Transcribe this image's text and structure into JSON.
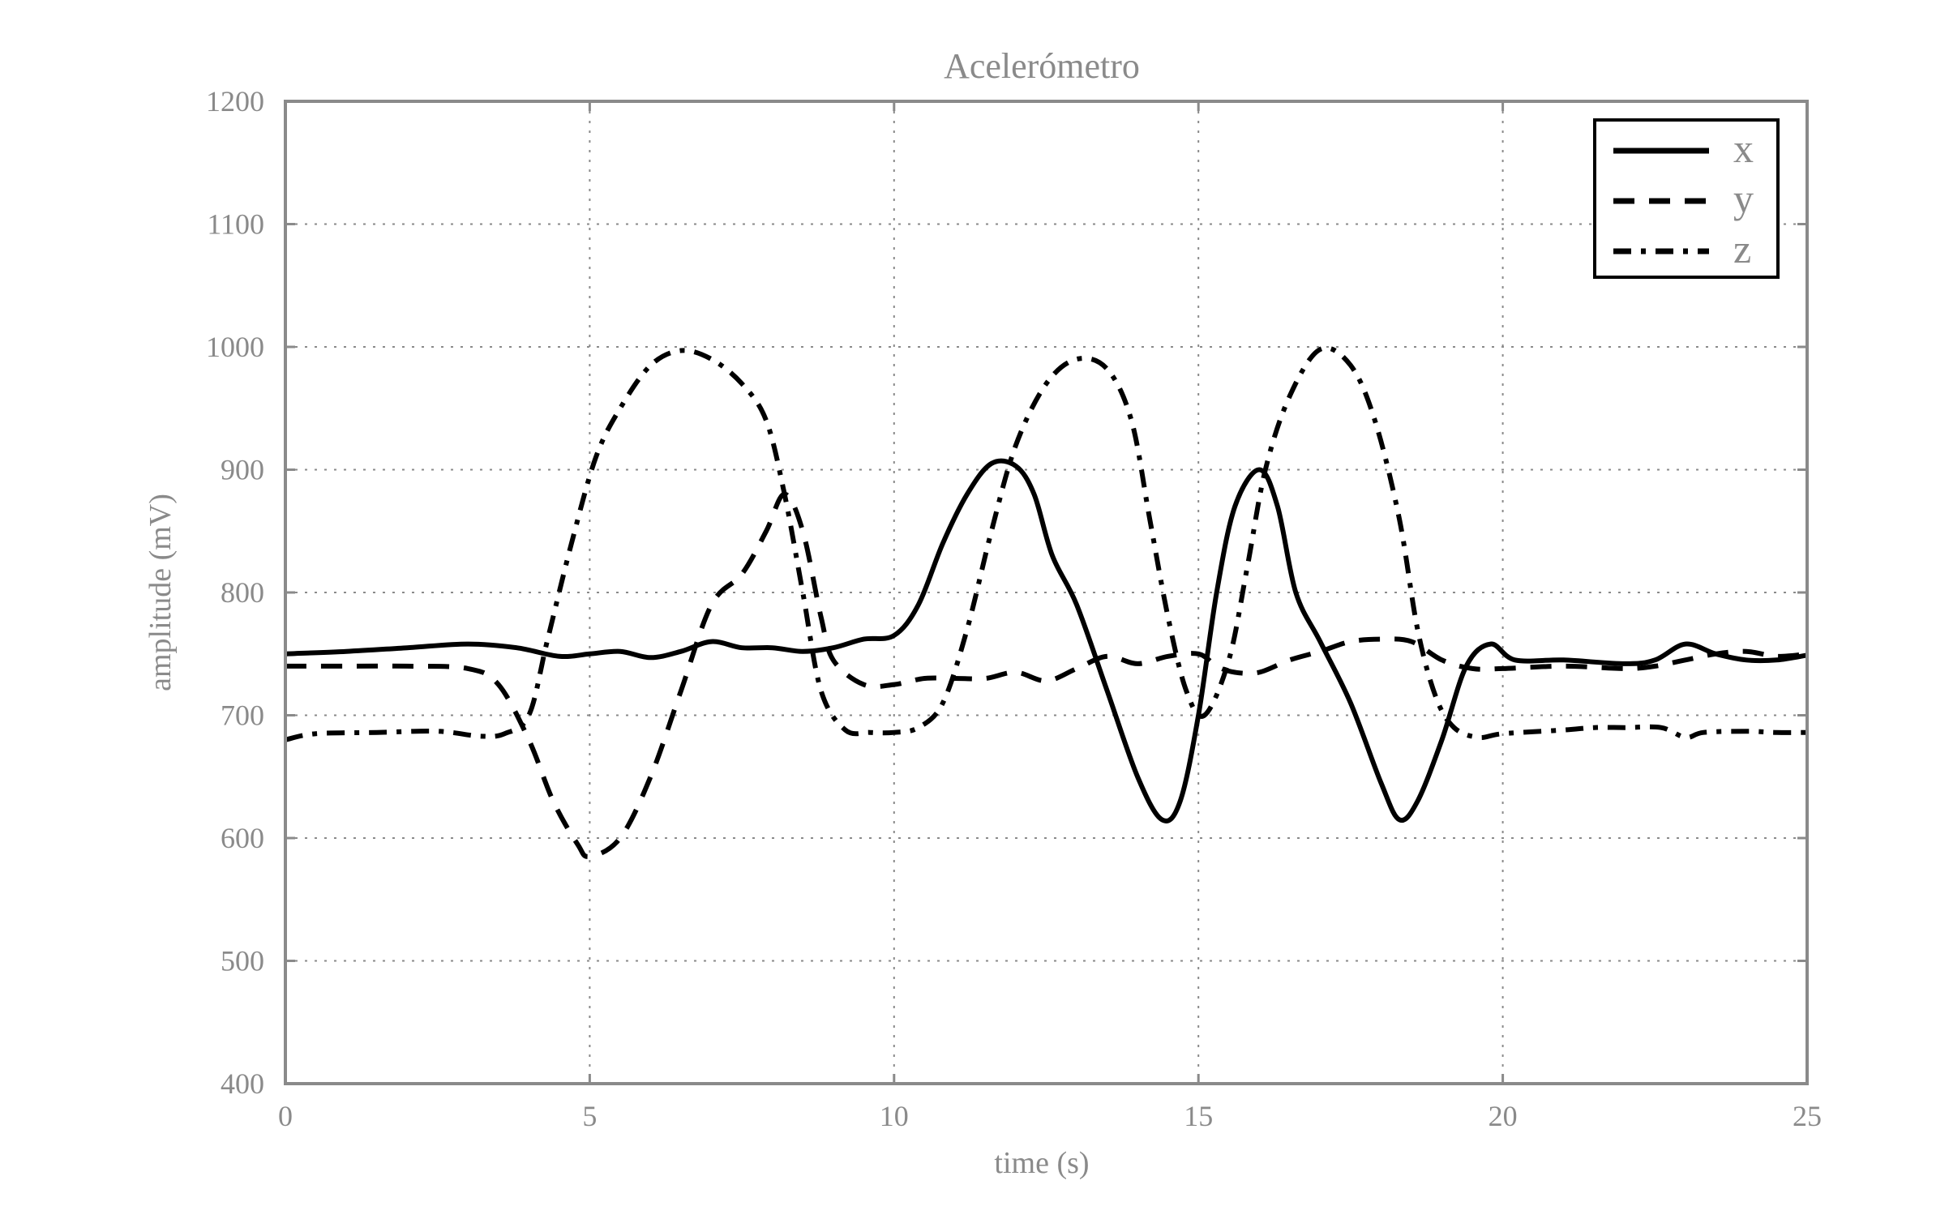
{
  "chart_data": {
    "type": "line",
    "title": "Acelerómetro",
    "xlabel": "time (s)",
    "ylabel": "amplitude (mV)",
    "xlim": [
      0,
      25
    ],
    "ylim": [
      400,
      1200
    ],
    "xticks": [
      0,
      5,
      10,
      15,
      20,
      25
    ],
    "yticks": [
      400,
      500,
      600,
      700,
      800,
      900,
      1000,
      1100,
      1200
    ],
    "xtick_labels": [
      "0",
      "5",
      "10",
      "15",
      "20",
      "25"
    ],
    "ytick_labels": [
      "400",
      "500",
      "600",
      "700",
      "800",
      "900",
      "1000",
      "1100",
      "1200"
    ],
    "grid": true,
    "legend_position": "top-right",
    "series": [
      {
        "name": "x",
        "style": "solid",
        "color": "#000000",
        "points": [
          [
            0,
            750
          ],
          [
            1,
            752
          ],
          [
            2,
            755
          ],
          [
            3,
            758
          ],
          [
            3.8,
            755
          ],
          [
            4.5,
            748
          ],
          [
            5,
            750
          ],
          [
            5.5,
            752
          ],
          [
            6,
            747
          ],
          [
            6.5,
            752
          ],
          [
            7,
            760
          ],
          [
            7.5,
            755
          ],
          [
            8,
            755
          ],
          [
            8.5,
            752
          ],
          [
            9,
            755
          ],
          [
            9.5,
            762
          ],
          [
            10,
            765
          ],
          [
            10.4,
            790
          ],
          [
            10.8,
            840
          ],
          [
            11.2,
            880
          ],
          [
            11.6,
            905
          ],
          [
            12,
            903
          ],
          [
            12.3,
            880
          ],
          [
            12.6,
            830
          ],
          [
            13,
            790
          ],
          [
            13.5,
            720
          ],
          [
            14,
            650
          ],
          [
            14.4,
            615
          ],
          [
            14.7,
            630
          ],
          [
            15,
            700
          ],
          [
            15.3,
            800
          ],
          [
            15.6,
            870
          ],
          [
            16,
            900
          ],
          [
            16.3,
            870
          ],
          [
            16.6,
            800
          ],
          [
            17,
            760
          ],
          [
            17.5,
            710
          ],
          [
            18,
            645
          ],
          [
            18.3,
            615
          ],
          [
            18.6,
            630
          ],
          [
            19,
            680
          ],
          [
            19.4,
            740
          ],
          [
            19.8,
            758
          ],
          [
            20.2,
            745
          ],
          [
            21,
            745
          ],
          [
            22,
            742
          ],
          [
            22.5,
            745
          ],
          [
            23,
            758
          ],
          [
            23.5,
            750
          ],
          [
            24,
            745
          ],
          [
            24.5,
            745
          ],
          [
            25,
            749
          ]
        ]
      },
      {
        "name": "y",
        "style": "dashed",
        "color": "#000000",
        "points": [
          [
            0,
            740
          ],
          [
            1,
            740
          ],
          [
            2,
            740
          ],
          [
            3,
            738
          ],
          [
            3.5,
            725
          ],
          [
            4,
            680
          ],
          [
            4.4,
            630
          ],
          [
            4.8,
            595
          ],
          [
            5,
            585
          ],
          [
            5.5,
            600
          ],
          [
            6,
            650
          ],
          [
            6.5,
            720
          ],
          [
            7,
            790
          ],
          [
            7.5,
            815
          ],
          [
            7.9,
            850
          ],
          [
            8.2,
            880
          ],
          [
            8.5,
            850
          ],
          [
            8.8,
            780
          ],
          [
            9,
            745
          ],
          [
            9.5,
            725
          ],
          [
            10,
            725
          ],
          [
            10.5,
            730
          ],
          [
            11,
            730
          ],
          [
            11.5,
            730
          ],
          [
            12,
            735
          ],
          [
            12.5,
            728
          ],
          [
            13,
            738
          ],
          [
            13.5,
            748
          ],
          [
            14,
            742
          ],
          [
            14.5,
            748
          ],
          [
            15,
            750
          ],
          [
            15.3,
            740
          ],
          [
            15.6,
            735
          ],
          [
            16,
            735
          ],
          [
            16.5,
            745
          ],
          [
            17,
            752
          ],
          [
            17.5,
            760
          ],
          [
            18,
            762
          ],
          [
            18.5,
            760
          ],
          [
            19,
            745
          ],
          [
            19.5,
            738
          ],
          [
            20,
            738
          ],
          [
            21,
            740
          ],
          [
            22,
            738
          ],
          [
            22.5,
            740
          ],
          [
            23,
            745
          ],
          [
            23.5,
            750
          ],
          [
            24,
            752
          ],
          [
            24.5,
            748
          ],
          [
            25,
            750
          ]
        ]
      },
      {
        "name": "z",
        "style": "dash-dot",
        "color": "#000000",
        "points": [
          [
            0,
            680
          ],
          [
            0.5,
            685
          ],
          [
            1.5,
            686
          ],
          [
            2.5,
            687
          ],
          [
            3.2,
            683
          ],
          [
            3.6,
            685
          ],
          [
            4,
            700
          ],
          [
            4.3,
            760
          ],
          [
            4.7,
            840
          ],
          [
            5.1,
            910
          ],
          [
            5.5,
            950
          ],
          [
            6,
            985
          ],
          [
            6.5,
            997
          ],
          [
            7,
            990
          ],
          [
            7.5,
            970
          ],
          [
            7.9,
            940
          ],
          [
            8.2,
            880
          ],
          [
            8.5,
            800
          ],
          [
            8.8,
            720
          ],
          [
            9.2,
            688
          ],
          [
            9.6,
            686
          ],
          [
            10,
            686
          ],
          [
            10.4,
            690
          ],
          [
            10.8,
            710
          ],
          [
            11.2,
            770
          ],
          [
            11.6,
            850
          ],
          [
            12,
            920
          ],
          [
            12.5,
            970
          ],
          [
            13,
            990
          ],
          [
            13.5,
            982
          ],
          [
            13.9,
            940
          ],
          [
            14.2,
            860
          ],
          [
            14.5,
            780
          ],
          [
            14.8,
            720
          ],
          [
            15.1,
            700
          ],
          [
            15.5,
            745
          ],
          [
            15.8,
            820
          ],
          [
            16.1,
            900
          ],
          [
            16.5,
            960
          ],
          [
            17,
            998
          ],
          [
            17.5,
            985
          ],
          [
            17.9,
            940
          ],
          [
            18.3,
            860
          ],
          [
            18.6,
            770
          ],
          [
            18.9,
            715
          ],
          [
            19.2,
            690
          ],
          [
            19.6,
            682
          ],
          [
            20,
            685
          ],
          [
            21,
            688
          ],
          [
            21.5,
            690
          ],
          [
            22,
            690
          ],
          [
            22.6,
            690
          ],
          [
            23,
            682
          ],
          [
            23.3,
            686
          ],
          [
            24,
            687
          ],
          [
            24.5,
            686
          ],
          [
            25,
            686
          ]
        ]
      }
    ]
  }
}
